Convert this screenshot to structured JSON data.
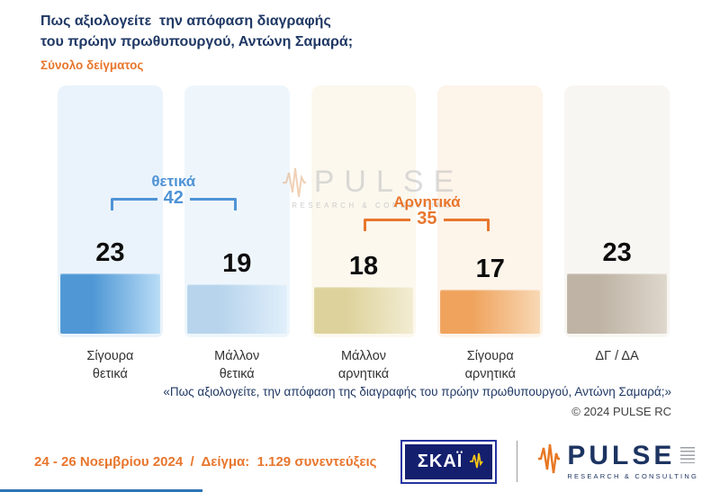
{
  "header": {
    "title_line1": "Πως αξιολογείτε  την απόφαση διαγραφής",
    "title_line2": "του πρώην πρωθυπουργού, Αντώνη Σαμαρά;",
    "subtitle": "Σύνολο δείγματος"
  },
  "chart_data": {
    "type": "bar",
    "title": "Πως αξιολογείτε την απόφαση διαγραφής του πρώην πρωθυπουργού, Αντώνη Σαμαρά;",
    "subtitle": "Σύνολο δείγματος",
    "categories": [
      "Σίγουρα θετικά",
      "Μάλλον θετικά",
      "Μάλλον αρνητικά",
      "Σίγουρα αρνητικά",
      "ΔΓ / ΔΑ"
    ],
    "values": [
      23,
      19,
      18,
      17,
      23
    ],
    "grid": false,
    "legend": false,
    "groups": [
      {
        "label": "θετικά",
        "value": 42,
        "columns": [
          0,
          1
        ],
        "color": "#4f93d6"
      },
      {
        "label": "Αρνητικά",
        "value": 35,
        "columns": [
          2,
          3
        ],
        "color": "#e8762d"
      }
    ],
    "columns": [
      {
        "label": "Σίγουρα\nθετικά",
        "value": 23,
        "panel_color": "#eaf3fb",
        "bar_main": "#4f98d5",
        "bar_light": "#b9dcf6"
      },
      {
        "label": "Μάλλον\nθετικά",
        "value": 19,
        "panel_color": "#eef6fc",
        "bar_main": "#b7d4ec",
        "bar_light": "#e0effa"
      },
      {
        "label": "Μάλλον\nαρνητικά",
        "value": 18,
        "panel_color": "#fcf8ee",
        "bar_main": "#ddd29b",
        "bar_light": "#f2ecd2"
      },
      {
        "label": "Σίγουρα\nαρνητικά",
        "value": 17,
        "panel_color": "#fdf4ea",
        "bar_main": "#efa35d",
        "bar_light": "#f8d8b4"
      },
      {
        "label": "ΔΓ / ΔΑ",
        "value": 23,
        "panel_color": "#f8f6f2",
        "bar_main": "#beb3a4",
        "bar_light": "#ded7cc"
      }
    ]
  },
  "watermark": {
    "text": "PULSE",
    "subtext": "RESEARCH & CONSULTING"
  },
  "footnote": {
    "quote": "«Πως αξιολογείτε, την απόφαση της διαγραφής του πρώην πρωθυπουργού, Αντώνη Σαμαρά;»",
    "copyright": "© 2024  PULSE RC"
  },
  "footer": {
    "date_sample": "24 - 26 Νοεμβρίου 2024  /  Δείγμα:  1.129 συνεντεύξεις",
    "skai_label": "ΣΚΑΪ",
    "pulse_label": "PULSE",
    "pulse_sub": "RESEARCH & CONSULTING"
  },
  "colors": {
    "title_navy": "#1f3864",
    "accent_orange": "#e8762d",
    "positive_blue": "#4f93d6",
    "skai_blue": "#141f6e",
    "pulse_navy": "#1d3461",
    "bottom_strip_blue": "#2e74b5"
  }
}
